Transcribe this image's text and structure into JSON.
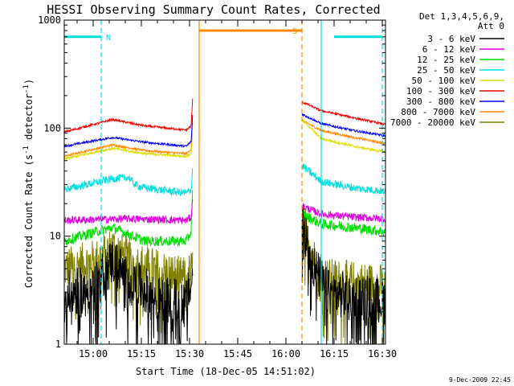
{
  "chart_data": {
    "type": "line",
    "title": "HESSI Observing Summary Count Rates, Corrected",
    "xlabel": "Start Time (18-Dec-05 14:51:02)",
    "ylabel_main": "Corrected Count Rate (s",
    "ylabel_sup1": "-1",
    "ylabel_mid": " detector",
    "ylabel_sup2": "-1",
    "ylabel_end": ")",
    "y_scale": "log",
    "ylim": [
      1,
      1000
    ],
    "xlim_minutes": [
      0,
      100
    ],
    "x_ticks": [
      {
        "m": 9,
        "label": "15:00"
      },
      {
        "m": 24,
        "label": "15:15"
      },
      {
        "m": 39,
        "label": "15:30"
      },
      {
        "m": 54,
        "label": "15:45"
      },
      {
        "m": 69,
        "label": "16:00"
      },
      {
        "m": 84,
        "label": "16:15"
      },
      {
        "m": 99,
        "label": "16:30"
      }
    ],
    "y_ticks": [
      {
        "v": 1,
        "label": "1"
      },
      {
        "v": 10,
        "label": "10"
      },
      {
        "v": 100,
        "label": "100"
      },
      {
        "v": 1000,
        "label": "1000"
      }
    ],
    "legend_header": [
      "Det 1,3,4,5,6,9,",
      "Att 0"
    ],
    "legend_position": "right",
    "grid": false,
    "data_gap_minutes": [
      40,
      74
    ],
    "series": [
      {
        "name": "3 - 6 keV",
        "color": "#000000",
        "noise": 0.55,
        "points": [
          [
            0,
            2.8
          ],
          [
            10,
            3.5
          ],
          [
            15,
            6
          ],
          [
            20,
            4
          ],
          [
            30,
            2.5
          ],
          [
            38,
            2.5
          ],
          [
            40,
            4
          ],
          [
            74,
            16
          ],
          [
            76,
            8
          ],
          [
            78,
            5
          ],
          [
            82,
            3
          ],
          [
            100,
            2.5
          ]
        ]
      },
      {
        "name": "6 - 12 keV",
        "color": "#dd00dd",
        "noise": 0.09,
        "points": [
          [
            0,
            14
          ],
          [
            20,
            14.5
          ],
          [
            38,
            14
          ],
          [
            39.5,
            15
          ],
          [
            40,
            22
          ],
          [
            74,
            19
          ],
          [
            80,
            16
          ],
          [
            90,
            15
          ],
          [
            100,
            14.5
          ]
        ]
      },
      {
        "name": "12 - 25 keV",
        "color": "#00dd00",
        "noise": 0.12,
        "points": [
          [
            0,
            9
          ],
          [
            10,
            11
          ],
          [
            15,
            12
          ],
          [
            25,
            9
          ],
          [
            38,
            9
          ],
          [
            39.5,
            11
          ],
          [
            40,
            30
          ],
          [
            74,
            16
          ],
          [
            80,
            13
          ],
          [
            90,
            12
          ],
          [
            100,
            11
          ]
        ]
      },
      {
        "name": "25 - 50 keV",
        "color": "#00e0e0",
        "noise": 0.09,
        "points": [
          [
            0,
            27
          ],
          [
            15,
            34
          ],
          [
            20,
            35
          ],
          [
            22,
            30
          ],
          [
            25,
            28
          ],
          [
            38,
            25
          ],
          [
            39.5,
            27
          ],
          [
            40,
            45
          ],
          [
            74,
            45
          ],
          [
            80,
            32
          ],
          [
            90,
            28
          ],
          [
            100,
            26
          ]
        ]
      },
      {
        "name": "50 - 100 keV",
        "color": "#dddd00",
        "noise": 0.03,
        "points": [
          [
            0,
            52
          ],
          [
            15,
            65
          ],
          [
            25,
            58
          ],
          [
            38,
            55
          ],
          [
            39.5,
            58
          ],
          [
            40,
            95
          ],
          [
            74,
            120
          ],
          [
            80,
            80
          ],
          [
            90,
            68
          ],
          [
            100,
            60
          ]
        ]
      },
      {
        "name": "100 - 300 keV",
        "color": "#ee0000",
        "noise": 0.025,
        "points": [
          [
            0,
            92
          ],
          [
            15,
            120
          ],
          [
            25,
            105
          ],
          [
            38,
            96
          ],
          [
            39.5,
            105
          ],
          [
            40,
            200
          ],
          [
            74,
            175
          ],
          [
            80,
            145
          ],
          [
            90,
            125
          ],
          [
            100,
            108
          ]
        ]
      },
      {
        "name": "300 - 800 keV",
        "color": "#0000ee",
        "noise": 0.025,
        "points": [
          [
            0,
            68
          ],
          [
            15,
            82
          ],
          [
            25,
            74
          ],
          [
            38,
            68
          ],
          [
            39.5,
            75
          ],
          [
            40,
            140
          ],
          [
            74,
            135
          ],
          [
            80,
            110
          ],
          [
            90,
            95
          ],
          [
            100,
            85
          ]
        ]
      },
      {
        "name": "800 - 7000 keV",
        "color": "#ff8800",
        "noise": 0.025,
        "points": [
          [
            0,
            55
          ],
          [
            15,
            70
          ],
          [
            25,
            62
          ],
          [
            38,
            58
          ],
          [
            39.5,
            64
          ],
          [
            40,
            120
          ],
          [
            74,
            118
          ],
          [
            80,
            95
          ],
          [
            90,
            82
          ],
          [
            100,
            72
          ]
        ]
      },
      {
        "name": "7000 - 20000 keV",
        "color": "#808000",
        "noise": 0.5,
        "points": [
          [
            0,
            5
          ],
          [
            10,
            6
          ],
          [
            15,
            8
          ],
          [
            20,
            6
          ],
          [
            38,
            4
          ],
          [
            40,
            5
          ],
          [
            74,
            14
          ],
          [
            78,
            6
          ],
          [
            82,
            4
          ],
          [
            100,
            3.5
          ]
        ]
      }
    ],
    "flags": [
      {
        "label": "N",
        "color": "#00e0e0",
        "value": 700,
        "segments": [
          [
            0,
            11.5
          ],
          [
            84,
            99
          ]
        ]
      },
      {
        "label": "S",
        "color": "#ff8800",
        "value": 800,
        "segments": [
          [
            42,
            74
          ]
        ]
      }
    ],
    "vlines": [
      {
        "m": 11.5,
        "color": "#00e0e0",
        "style": "dashed"
      },
      {
        "m": 42,
        "color": "#ff8800",
        "style": "solid"
      },
      {
        "m": 74,
        "color": "#ff8800",
        "style": "dashed"
      },
      {
        "m": 80,
        "color": "#00e0e0",
        "style": "solid"
      },
      {
        "m": 99,
        "color": "#00e0e0",
        "style": "dashed"
      }
    ],
    "footer_timestamp": "9-Dec-2009 22:45"
  }
}
